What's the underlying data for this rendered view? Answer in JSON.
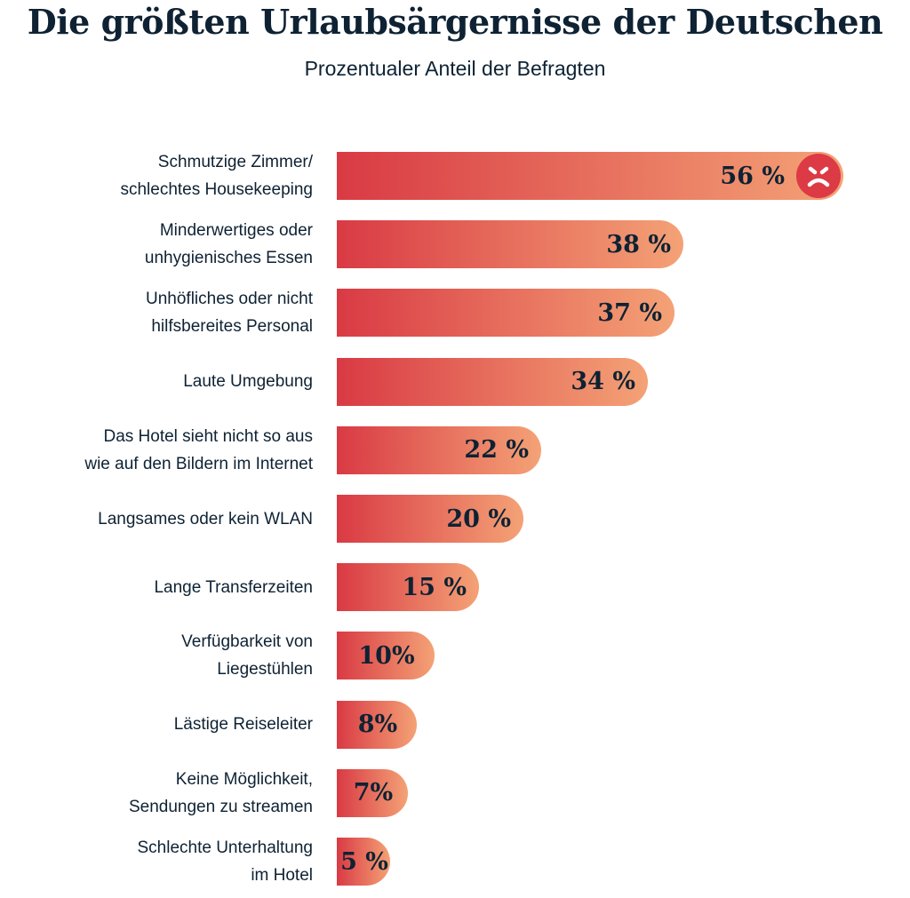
{
  "title": "Die größten Urlaubsärgernisse der Deutschen",
  "subtitle": "Prozentualer Anteil der Befragten",
  "chart_data": {
    "type": "bar",
    "orientation": "horizontal",
    "title": "Die größten Urlaubsärgernisse der Deutschen",
    "subtitle": "Prozentualer Anteil der Befragten",
    "unit": "%",
    "grid": false,
    "colors": {
      "gradient_start": "#d93a44",
      "gradient_end": "#f4a276",
      "text": "#0e2233",
      "icon": "#dc3a44"
    },
    "top_item_icon": "angry-face-icon",
    "categories": [
      "Schmutzige Zimmer/\nschlechtes Housekeeping",
      "Minderwertiges oder\nunhygienisches Essen",
      "Unhöfliches oder nicht\nhilfsbereites Personal",
      "Laute Umgebung",
      "Das Hotel sieht nicht so aus\nwie auf den Bildern im Internet",
      "Langsames oder kein WLAN",
      "Lange Transferzeiten",
      "Verfügbarkeit von\nLiegestühlen",
      "Lästige Reiseleiter",
      "Keine Möglichkeit,\nSendungen zu streamen",
      "Schlechte Unterhaltung\nim Hotel"
    ],
    "values": [
      56,
      38,
      37,
      34,
      22,
      20,
      15,
      10,
      8,
      7,
      5
    ],
    "value_labels": [
      "56 %",
      "38 %",
      "37 %",
      "34 %",
      "22 %",
      "20 %",
      "15 %",
      "10%",
      "8%",
      "7%",
      "5 %"
    ]
  }
}
